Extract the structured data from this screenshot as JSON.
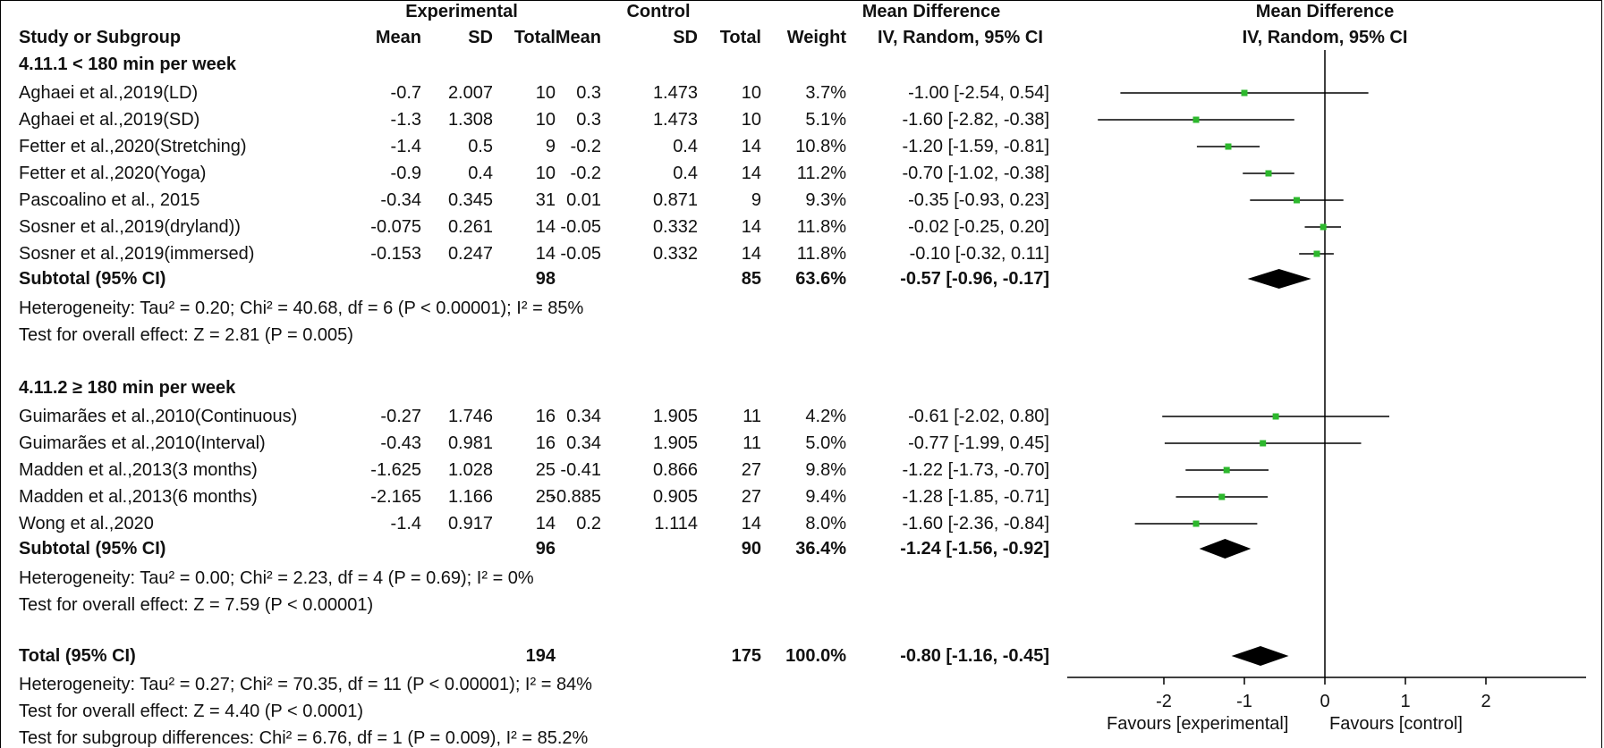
{
  "header": {
    "experimental": "Experimental",
    "control": "Control",
    "md_col": "Mean Difference",
    "md_plot": "Mean Difference",
    "study": "Study or Subgroup",
    "mean_e": "Mean",
    "sd_e": "SD",
    "total_e": "Total",
    "mean_c": "Mean",
    "sd_c": "SD",
    "total_c": "Total",
    "weight": "Weight",
    "method_col": "IV, Random, 95% CI",
    "method_plot": "IV, Random, 95% CI"
  },
  "subgroups": [
    {
      "title": "4.11.1 < 180 min per week",
      "rows": [
        {
          "study": "Aghaei et al.,2019(LD)",
          "mean_e": "-0.7",
          "sd_e": "2.007",
          "total_e": "10",
          "mean_c": "0.3",
          "sd_c": "1.473",
          "total_c": "10",
          "weight": "3.7%",
          "ci": "-1.00 [-2.54, 0.54]"
        },
        {
          "study": "Aghaei et al.,2019(SD)",
          "mean_e": "-1.3",
          "sd_e": "1.308",
          "total_e": "10",
          "mean_c": "0.3",
          "sd_c": "1.473",
          "total_c": "10",
          "weight": "5.1%",
          "ci": "-1.60 [-2.82, -0.38]"
        },
        {
          "study": "Fetter et al.,2020(Stretching)",
          "mean_e": "-1.4",
          "sd_e": "0.5",
          "total_e": "9",
          "mean_c": "-0.2",
          "sd_c": "0.4",
          "total_c": "14",
          "weight": "10.8%",
          "ci": "-1.20 [-1.59, -0.81]"
        },
        {
          "study": "Fetter et al.,2020(Yoga)",
          "mean_e": "-0.9",
          "sd_e": "0.4",
          "total_e": "10",
          "mean_c": "-0.2",
          "sd_c": "0.4",
          "total_c": "14",
          "weight": "11.2%",
          "ci": "-0.70 [-1.02, -0.38]"
        },
        {
          "study": "Pascoalino et al., 2015",
          "mean_e": "-0.34",
          "sd_e": "0.345",
          "total_e": "31",
          "mean_c": "0.01",
          "sd_c": "0.871",
          "total_c": "9",
          "weight": "9.3%",
          "ci": "-0.35 [-0.93, 0.23]"
        },
        {
          "study": "Sosner et al.,2019(dryland))",
          "mean_e": "-0.075",
          "sd_e": "0.261",
          "total_e": "14",
          "mean_c": "-0.05",
          "sd_c": "0.332",
          "total_c": "14",
          "weight": "11.8%",
          "ci": "-0.02 [-0.25, 0.20]"
        },
        {
          "study": "Sosner et al.,2019(immersed)",
          "mean_e": "-0.153",
          "sd_e": "0.247",
          "total_e": "14",
          "mean_c": "-0.05",
          "sd_c": "0.332",
          "total_c": "14",
          "weight": "11.8%",
          "ci": "-0.10 [-0.32, 0.11]"
        }
      ],
      "subtotal": {
        "label": "Subtotal (95% CI)",
        "total_e": "98",
        "total_c": "85",
        "weight": "63.6%",
        "ci": "-0.57 [-0.96, -0.17]"
      },
      "heterogeneity": "Heterogeneity: Tau² = 0.20; Chi² = 40.68, df = 6 (P < 0.00001); I² = 85%",
      "overall": "Test for overall effect: Z = 2.81 (P = 0.005)"
    },
    {
      "title": "4.11.2 ≥ 180 min per week",
      "rows": [
        {
          "study": "Guimarães et al.,2010(Continuous)",
          "mean_e": "-0.27",
          "sd_e": "1.746",
          "total_e": "16",
          "mean_c": "0.34",
          "sd_c": "1.905",
          "total_c": "11",
          "weight": "4.2%",
          "ci": "-0.61 [-2.02, 0.80]"
        },
        {
          "study": "Guimarães et al.,2010(Interval)",
          "mean_e": "-0.43",
          "sd_e": "0.981",
          "total_e": "16",
          "mean_c": "0.34",
          "sd_c": "1.905",
          "total_c": "11",
          "weight": "5.0%",
          "ci": "-0.77 [-1.99, 0.45]"
        },
        {
          "study": "Madden et al.,2013(3 months)",
          "mean_e": "-1.625",
          "sd_e": "1.028",
          "total_e": "25",
          "mean_c": "-0.41",
          "sd_c": "0.866",
          "total_c": "27",
          "weight": "9.8%",
          "ci": "-1.22 [-1.73, -0.70]"
        },
        {
          "study": "Madden et al.,2013(6 months)",
          "mean_e": "-2.165",
          "sd_e": "1.166",
          "total_e": "25",
          "mean_c": "-0.885",
          "sd_c": "0.905",
          "total_c": "27",
          "weight": "9.4%",
          "ci": "-1.28 [-1.85, -0.71]"
        },
        {
          "study": "Wong et al.,2020",
          "mean_e": "-1.4",
          "sd_e": "0.917",
          "total_e": "14",
          "mean_c": "0.2",
          "sd_c": "1.114",
          "total_c": "14",
          "weight": "8.0%",
          "ci": "-1.60 [-2.36, -0.84]"
        }
      ],
      "subtotal": {
        "label": "Subtotal (95% CI)",
        "total_e": "96",
        "total_c": "90",
        "weight": "36.4%",
        "ci": "-1.24 [-1.56, -0.92]"
      },
      "heterogeneity": "Heterogeneity: Tau² = 0.00; Chi² = 2.23, df = 4 (P = 0.69); I² = 0%",
      "overall": "Test for overall effect: Z = 7.59 (P < 0.00001)"
    }
  ],
  "total": {
    "label": "Total (95% CI)",
    "total_e": "194",
    "total_c": "175",
    "weight": "100.0%",
    "ci": "-0.80 [-1.16, -0.45]",
    "heterogeneity": "Heterogeneity: Tau² = 0.27; Chi² = 70.35, df = 11 (P < 0.00001); I² = 84%",
    "overall": "Test for overall effect: Z = 4.40 (P < 0.0001)",
    "subgroup_diff": "Test for subgroup differences: Chi² = 6.76, df = 1 (P = 0.009), I² = 85.2%"
  },
  "axis": {
    "favours_left": "Favours [experimental]",
    "favours_right": "Favours [control]"
  },
  "colors": {
    "marker": "#2db82d",
    "diamond": "#000000",
    "line": "#000000"
  },
  "chart_data": {
    "type": "forest",
    "xlim": [
      -3,
      3.2
    ],
    "ticks": [
      -2,
      -1,
      0,
      1,
      2
    ],
    "tick_labels": [
      "-2",
      "-1",
      "0",
      "1",
      "2"
    ],
    "studies": [
      {
        "est": -1.0,
        "lo": -2.54,
        "hi": 0.54
      },
      {
        "est": -1.6,
        "lo": -2.82,
        "hi": -0.38
      },
      {
        "est": -1.2,
        "lo": -1.59,
        "hi": -0.81
      },
      {
        "est": -0.7,
        "lo": -1.02,
        "hi": -0.38
      },
      {
        "est": -0.35,
        "lo": -0.93,
        "hi": 0.23
      },
      {
        "est": -0.02,
        "lo": -0.25,
        "hi": 0.2
      },
      {
        "est": -0.1,
        "lo": -0.32,
        "hi": 0.11
      },
      {
        "est": -0.61,
        "lo": -2.02,
        "hi": 0.8
      },
      {
        "est": -0.77,
        "lo": -1.99,
        "hi": 0.45
      },
      {
        "est": -1.22,
        "lo": -1.73,
        "hi": -0.7
      },
      {
        "est": -1.28,
        "lo": -1.85,
        "hi": -0.71
      },
      {
        "est": -1.6,
        "lo": -2.36,
        "hi": -0.84
      }
    ],
    "diamonds": [
      {
        "est": -0.57,
        "lo": -0.96,
        "hi": -0.17
      },
      {
        "est": -1.24,
        "lo": -1.56,
        "hi": -0.92
      },
      {
        "est": -0.8,
        "lo": -1.16,
        "hi": -0.45
      }
    ]
  }
}
